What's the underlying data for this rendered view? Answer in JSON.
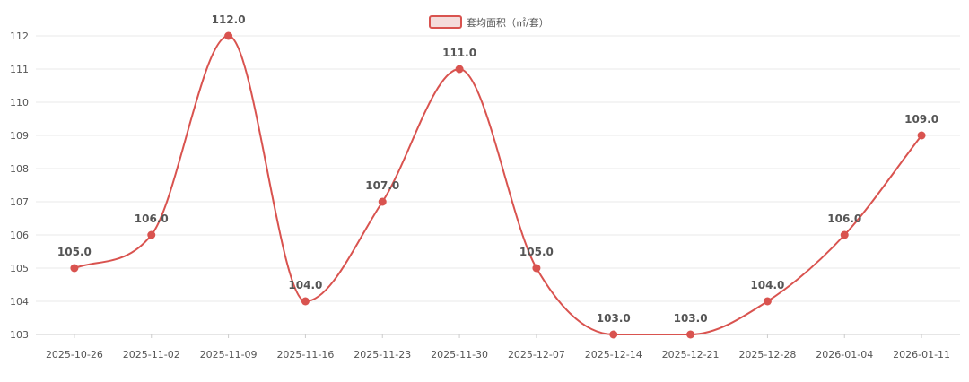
{
  "chart_data": {
    "type": "line",
    "x": [
      "2025-10-26",
      "2025-11-02",
      "2025-11-09",
      "2025-11-16",
      "2025-11-23",
      "2025-11-30",
      "2025-12-07",
      "2025-12-14",
      "2025-12-21",
      "2025-12-28",
      "2026-01-04",
      "2026-01-11"
    ],
    "series": [
      {
        "name": "套均面积（㎡/套）",
        "values": [
          105.0,
          106.0,
          112.0,
          104.0,
          107.0,
          111.0,
          105.0,
          103.0,
          103.0,
          104.0,
          106.0,
          109.0
        ],
        "color": "#d9534f"
      }
    ],
    "data_labels": [
      "105.0",
      "106.0",
      "112.0",
      "104.0",
      "107.0",
      "111.0",
      "105.0",
      "103.0",
      "103.0",
      "104.0",
      "106.0",
      "109.0"
    ],
    "ylim": [
      103,
      112
    ],
    "yticks": [
      "103",
      "104",
      "105",
      "106",
      "107",
      "108",
      "109",
      "110",
      "111",
      "112"
    ],
    "grid": true,
    "legend_position": "top-center",
    "smooth": true
  }
}
